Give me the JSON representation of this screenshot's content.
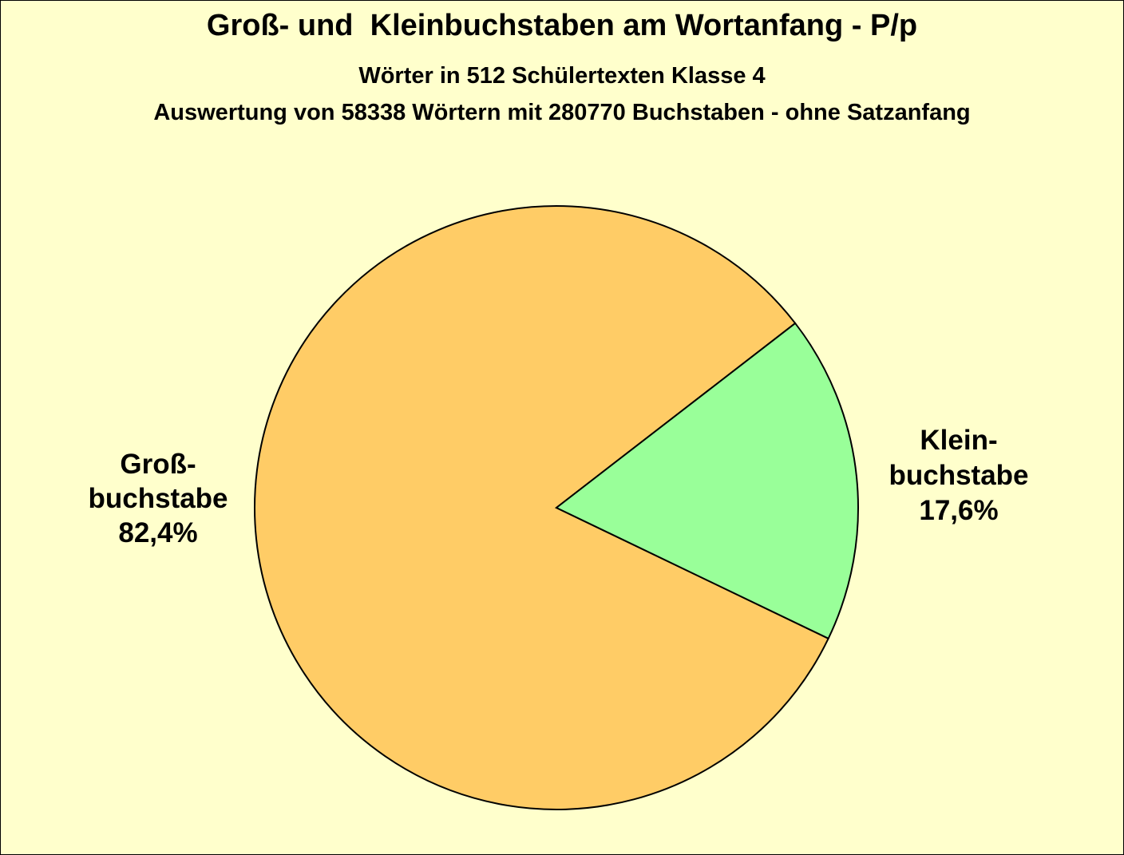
{
  "chart_data": {
    "type": "pie",
    "title": "Groß- und  Kleinbuchstaben am Wortanfang - P/p",
    "subtitle": "Wörter in 512 Schülertexten Klasse 4",
    "subtitle2": "Auswertung von 58338 Wörtern mit 280770 Buchstaben - ohne Satzanfang",
    "slices": [
      {
        "label_lines": [
          "Groß-",
          "buchstabe"
        ],
        "value": 82.4,
        "value_label": "82,4%",
        "color": "#ffcc66"
      },
      {
        "label_lines": [
          "Klein-",
          "buchstabe"
        ],
        "value": 17.6,
        "value_label": "17,6%",
        "color": "#99ff99"
      }
    ],
    "legend": "none"
  },
  "colors": {
    "background": "#ffffcc",
    "outline": "#000000"
  }
}
